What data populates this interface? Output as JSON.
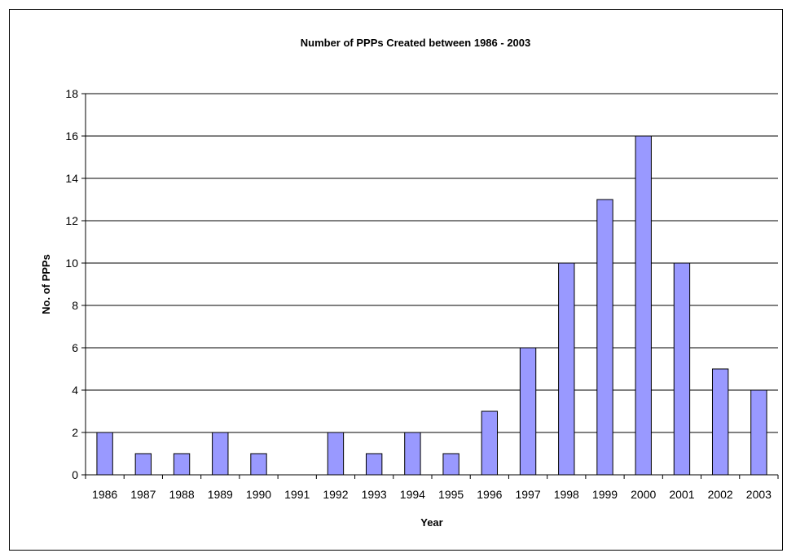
{
  "chart_data": {
    "type": "bar",
    "title": "Number of PPPs Created between 1986 - 2003",
    "xlabel": "Year",
    "ylabel": "No. of PPPs",
    "categories": [
      "1986",
      "1987",
      "1988",
      "1989",
      "1990",
      "1991",
      "1992",
      "1993",
      "1994",
      "1995",
      "1996",
      "1997",
      "1998",
      "1999",
      "2000",
      "2001",
      "2002",
      "2003"
    ],
    "values": [
      2,
      1,
      1,
      2,
      1,
      0,
      2,
      1,
      2,
      1,
      3,
      6,
      10,
      13,
      16,
      10,
      5,
      4
    ],
    "ylim": [
      0,
      18
    ],
    "yticks": [
      "0",
      "2",
      "4",
      "6",
      "8",
      "10",
      "12",
      "14",
      "16",
      "18"
    ],
    "grid": true,
    "legend": "none",
    "colors": {
      "bar_fill": "#9999ff",
      "bar_stroke": "#000000",
      "grid": "#000000",
      "plot_bg": "#ffffff"
    }
  }
}
